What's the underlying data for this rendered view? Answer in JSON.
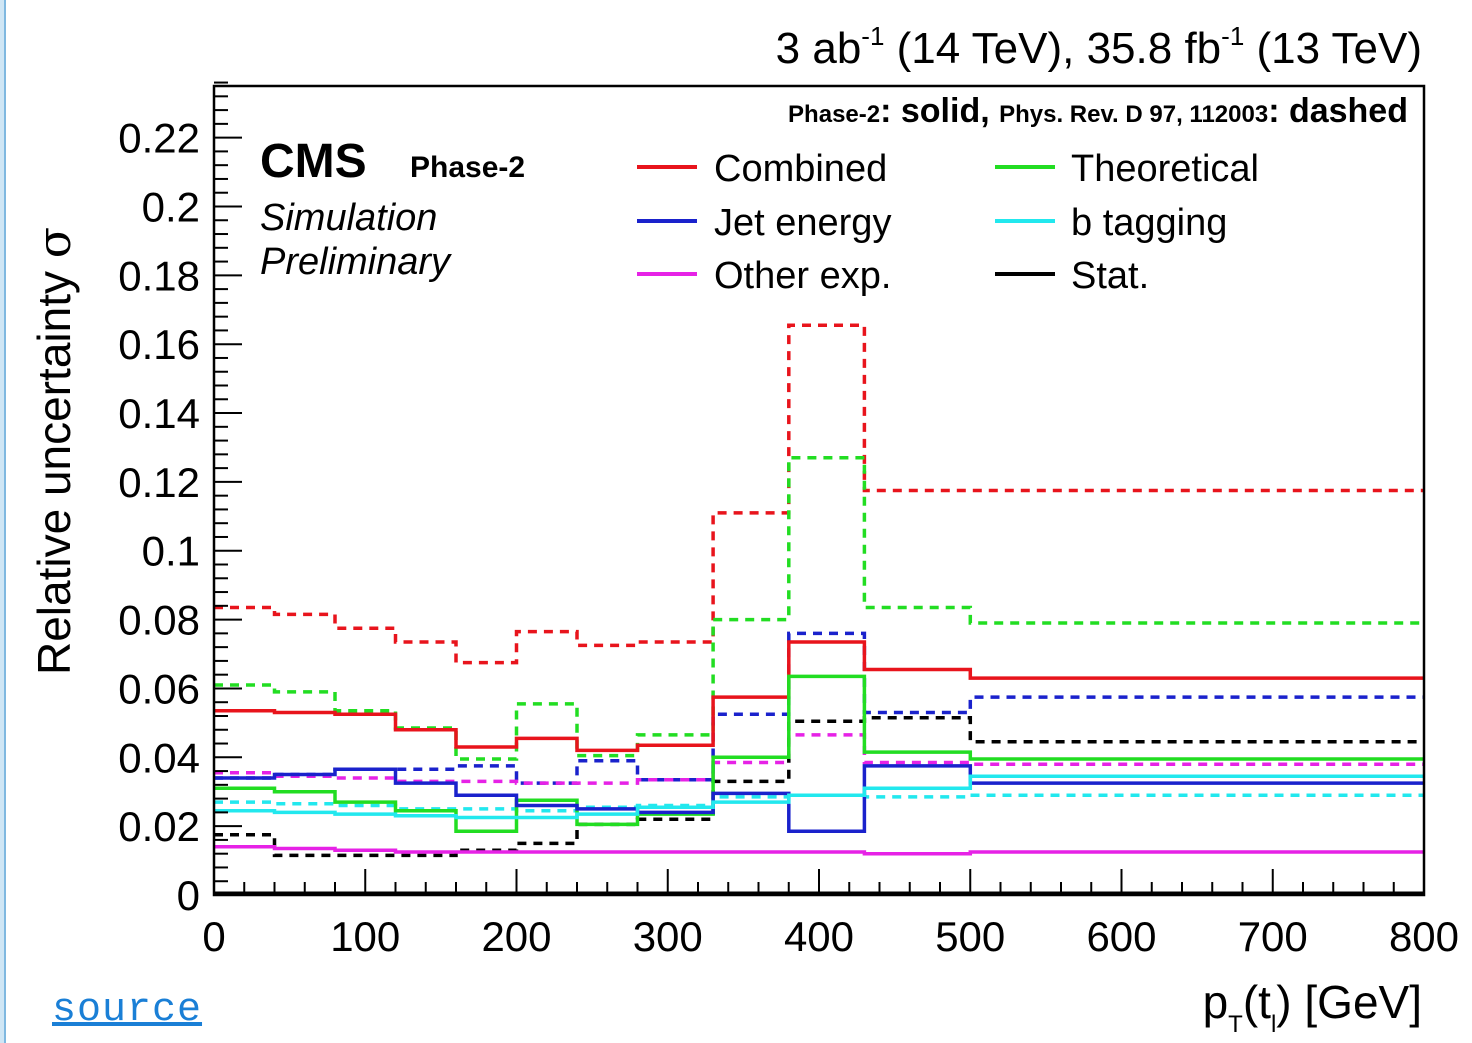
{
  "page": {
    "source_link": "source"
  },
  "chart_data": {
    "type": "line",
    "step": true,
    "top_label": {
      "prefix": "3 ab",
      "sup1": "-1",
      "mid": " (14 TeV), 35.8 fb",
      "sup2": "-1",
      "suffix": " (13 TeV)"
    },
    "cms_label": "CMS",
    "phase_label": "Phase-2",
    "subtitle_lines": [
      "Simulation",
      "Preliminary"
    ],
    "legend_header": {
      "part1_small": "Phase-2",
      "part1_big": ": solid, ",
      "part2_small": "Phys. Rev. D 97, 112003",
      "part2_big": ": dashed"
    },
    "xlabel": {
      "main": "p",
      "sub1": "T",
      "paren_open": "(t",
      "sub2": "l",
      "rest": ") [GeV]"
    },
    "ylabel": {
      "text": "Relative uncertainty ",
      "symbol": "σ"
    },
    "xlim": [
      0,
      800
    ],
    "ylim": [
      0,
      0.235
    ],
    "xticks": [
      0,
      100,
      200,
      300,
      400,
      500,
      600,
      700,
      800
    ],
    "xtick_labels": [
      "0",
      "100",
      "200",
      "300",
      "400",
      "500",
      "600",
      "700",
      "800"
    ],
    "yticks": [
      0,
      0.02,
      0.04,
      0.06,
      0.08,
      0.1,
      0.12,
      0.14,
      0.16,
      0.18,
      0.2,
      0.22
    ],
    "ytick_labels": [
      "0",
      "0.02",
      "0.04",
      "0.06",
      "0.08",
      "0.1",
      "0.12",
      "0.14",
      "0.16",
      "0.18",
      "0.2",
      "0.22"
    ],
    "grid": false,
    "legend_position": "top-right",
    "legend": [
      {
        "name": "Combined",
        "color": "#e8141c"
      },
      {
        "name": "Theoretical",
        "color": "#22dd22"
      },
      {
        "name": "Jet energy",
        "color": "#1a22cc"
      },
      {
        "name": "b tagging",
        "color": "#22e8ee"
      },
      {
        "name": "Other exp.",
        "color": "#e622e6"
      },
      {
        "name": "Stat.",
        "color": "#000000"
      }
    ],
    "bin_edges": [
      0,
      40,
      80,
      120,
      160,
      200,
      240,
      280,
      330,
      380,
      430,
      500,
      800
    ],
    "series": [
      {
        "name": "Combined",
        "style": "dashed",
        "color": "#e8141c",
        "values": [
          0.0835,
          0.0815,
          0.0775,
          0.0735,
          0.0675,
          0.0765,
          0.0725,
          0.0735,
          0.111,
          0.1655,
          0.1175,
          0.1175
        ]
      },
      {
        "name": "Theoretical",
        "style": "dashed",
        "color": "#22dd22",
        "values": [
          0.061,
          0.059,
          0.0535,
          0.0485,
          0.0395,
          0.0555,
          0.0405,
          0.0465,
          0.08,
          0.127,
          0.0835,
          0.079
        ]
      },
      {
        "name": "Jet energy",
        "style": "dashed",
        "color": "#1a22cc",
        "values": [
          0.034,
          0.035,
          0.0365,
          0.0365,
          0.0375,
          0.0325,
          0.039,
          0.0335,
          0.0525,
          0.076,
          0.053,
          0.0575
        ]
      },
      {
        "name": "Other exp.",
        "style": "dashed",
        "color": "#e622e6",
        "values": [
          0.0355,
          0.0345,
          0.034,
          0.033,
          0.033,
          0.0325,
          0.0325,
          0.0335,
          0.0385,
          0.0465,
          0.0385,
          0.038
        ]
      },
      {
        "name": "b tagging",
        "style": "dashed",
        "color": "#22e8ee",
        "values": [
          0.027,
          0.0265,
          0.026,
          0.025,
          0.025,
          0.0245,
          0.0255,
          0.026,
          0.0285,
          0.029,
          0.0285,
          0.029
        ]
      },
      {
        "name": "Stat.",
        "style": "dashed",
        "color": "#000000",
        "values": [
          0.0175,
          0.0115,
          0.0115,
          0.0115,
          0.013,
          0.015,
          0.0205,
          0.022,
          0.033,
          0.0505,
          0.0515,
          0.0445
        ]
      },
      {
        "name": "Combined",
        "style": "solid",
        "color": "#e8141c",
        "values": [
          0.0535,
          0.053,
          0.0525,
          0.048,
          0.043,
          0.0455,
          0.042,
          0.0435,
          0.0575,
          0.0735,
          0.0655,
          0.063
        ]
      },
      {
        "name": "Theoretical",
        "style": "solid",
        "color": "#22dd22",
        "values": [
          0.031,
          0.03,
          0.027,
          0.0245,
          0.0185,
          0.0275,
          0.0205,
          0.0235,
          0.04,
          0.0635,
          0.0415,
          0.0395
        ]
      },
      {
        "name": "Jet energy",
        "style": "solid",
        "color": "#1a22cc",
        "values": [
          0.034,
          0.035,
          0.0365,
          0.0325,
          0.029,
          0.026,
          0.025,
          0.024,
          0.0295,
          0.0185,
          0.0375,
          0.0325
        ]
      },
      {
        "name": "b tagging",
        "style": "solid",
        "color": "#22e8ee",
        "values": [
          0.0245,
          0.024,
          0.0235,
          0.023,
          0.0225,
          0.0225,
          0.0235,
          0.0255,
          0.027,
          0.029,
          0.031,
          0.0345
        ]
      },
      {
        "name": "Other exp.",
        "style": "solid",
        "color": "#e622e6",
        "values": [
          0.014,
          0.0135,
          0.013,
          0.0125,
          0.0125,
          0.0125,
          0.0125,
          0.0125,
          0.0125,
          0.0125,
          0.012,
          0.0125
        ]
      },
      {
        "name": "Stat.",
        "style": "solid",
        "color": "#000000",
        "values": [
          0.0005,
          0.0005,
          0.0005,
          0.0005,
          0.0005,
          0.0005,
          0.0005,
          0.0005,
          0.0005,
          0.0005,
          0.0005,
          0.0005
        ]
      }
    ]
  }
}
